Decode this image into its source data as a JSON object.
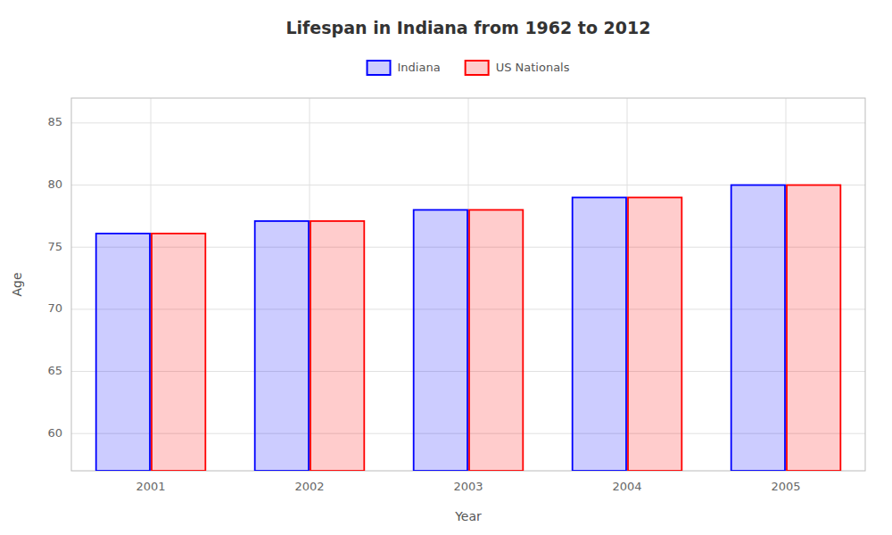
{
  "chart_data": {
    "type": "bar",
    "title": "Lifespan in Indiana from 1962 to 2012",
    "xlabel": "Year",
    "ylabel": "Age",
    "categories": [
      "2001",
      "2002",
      "2003",
      "2004",
      "2005"
    ],
    "series": [
      {
        "name": "Indiana",
        "color": "#0000ff",
        "values": [
          76.1,
          77.1,
          78.0,
          79.0,
          80.0
        ]
      },
      {
        "name": "US Nationals",
        "color": "#ff0000",
        "values": [
          76.1,
          77.1,
          78.0,
          79.0,
          80.0
        ]
      }
    ],
    "ylim": [
      57,
      87
    ],
    "yticks": [
      60,
      65,
      70,
      75,
      80,
      85
    ],
    "grid": true,
    "legend": "top"
  }
}
